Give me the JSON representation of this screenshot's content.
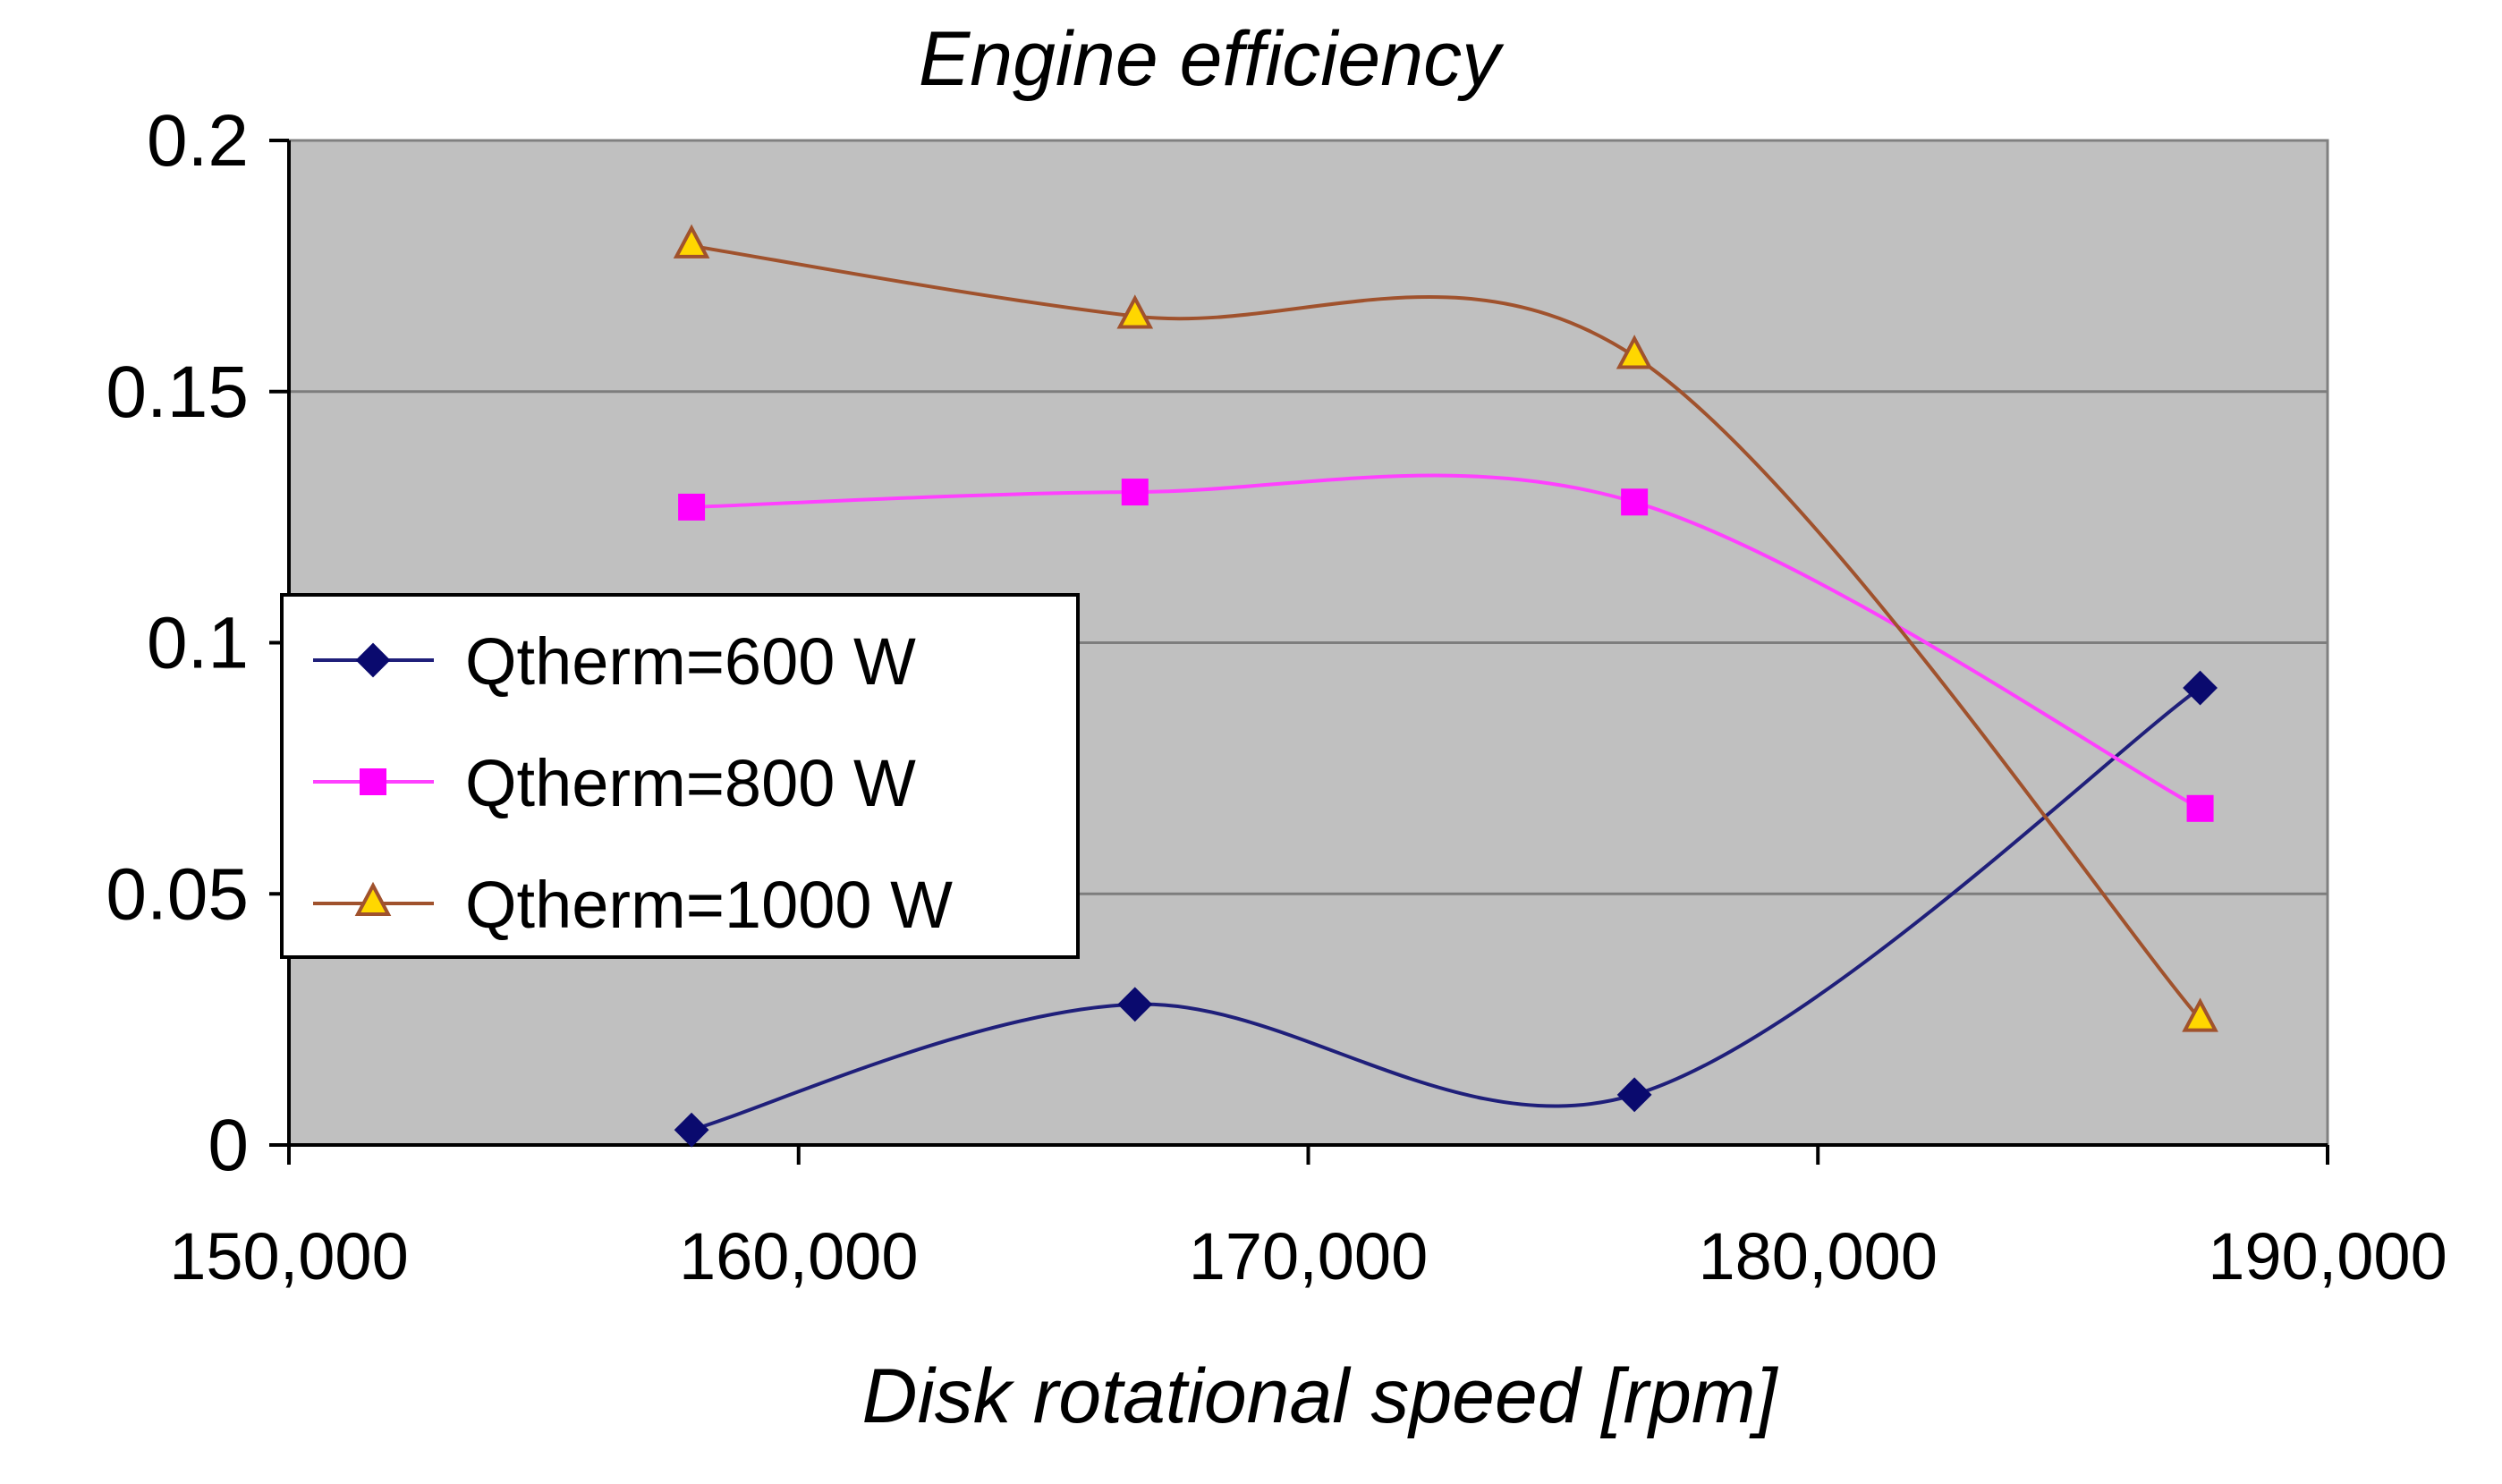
{
  "chart_data": {
    "type": "line",
    "title": "Engine efficiency",
    "xlabel": "Disk rotational speed [rpm]",
    "ylabel": "",
    "xlim": [
      150000,
      190000
    ],
    "ylim": [
      0,
      0.2
    ],
    "xticks": [
      150000,
      160000,
      170000,
      180000,
      190000
    ],
    "xtick_labels": [
      "150,000",
      "160,000",
      "170,000",
      "180,000",
      "190,000"
    ],
    "yticks": [
      0,
      0.05,
      0.1,
      0.15,
      0.2
    ],
    "ytick_labels": [
      "0",
      "0.05",
      "0.1",
      "0.15",
      "0.2"
    ],
    "grid": "horizontal",
    "plot_background": "#c0c0c0",
    "legend_position": "center-left",
    "smooth": true,
    "series": [
      {
        "name": "Qtherm=600 W",
        "color": "#1f1f7a",
        "marker": "diamond",
        "marker_color": "#0a0a6e",
        "x": [
          157900,
          166600,
          176400,
          187500
        ],
        "y": [
          0.003,
          0.028,
          0.01,
          0.091
        ]
      },
      {
        "name": "Qtherm=800 W",
        "color": "#ff40ff",
        "marker": "square",
        "marker_color": "#ff00ff",
        "x": [
          157900,
          166600,
          176400,
          187500
        ],
        "y": [
          0.127,
          0.13,
          0.128,
          0.067
        ]
      },
      {
        "name": "Qtherm=1000 W",
        "color": "#a0522d",
        "marker": "triangle",
        "marker_color": "#ffd700",
        "marker_edge": "#a0522d",
        "x": [
          157900,
          166600,
          176400,
          187500
        ],
        "y": [
          0.179,
          0.165,
          0.157,
          0.025
        ]
      }
    ]
  }
}
